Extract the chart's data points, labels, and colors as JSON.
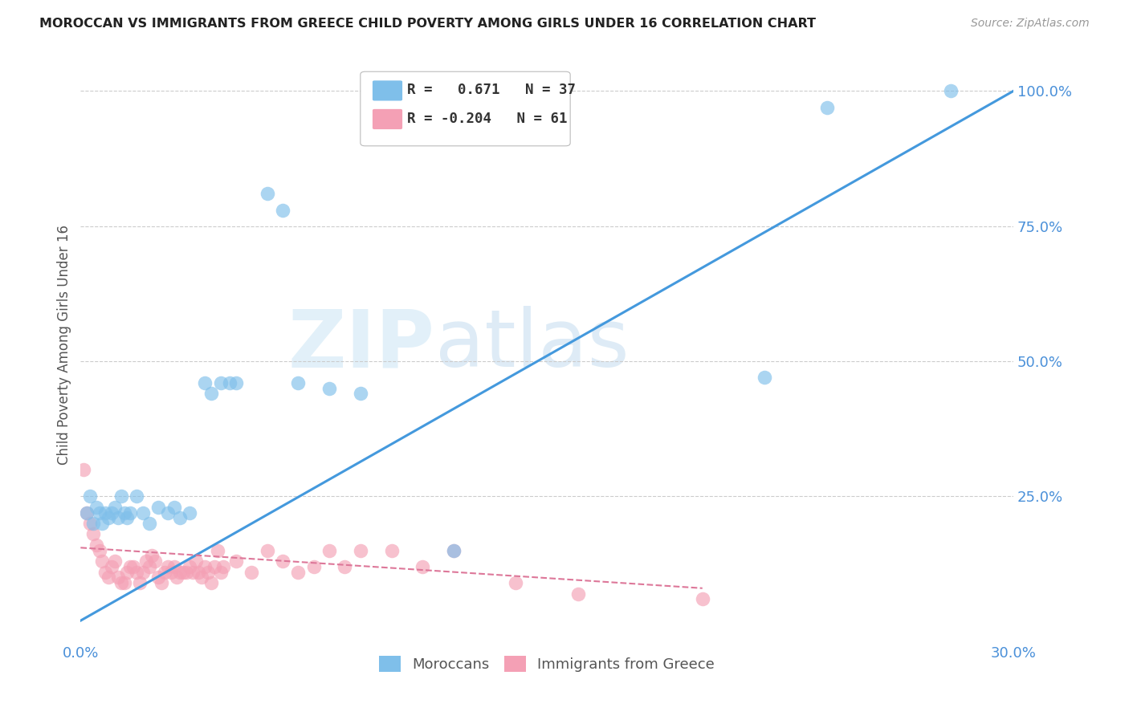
{
  "title": "MOROCCAN VS IMMIGRANTS FROM GREECE CHILD POVERTY AMONG GIRLS UNDER 16 CORRELATION CHART",
  "source": "Source: ZipAtlas.com",
  "ylabel": "Child Poverty Among Girls Under 16",
  "xlim": [
    0.0,
    0.3
  ],
  "ylim": [
    -0.02,
    1.08
  ],
  "yticks_right": [
    0.25,
    0.5,
    0.75,
    1.0
  ],
  "ytick_right_labels": [
    "25.0%",
    "50.0%",
    "75.0%",
    "100.0%"
  ],
  "blue_color": "#7fbfea",
  "pink_color": "#f4a0b5",
  "trend_blue": "#4499dd",
  "trend_pink": "#dd7799",
  "watermark_zip": "ZIP",
  "watermark_atlas": "atlas",
  "legend_blue_r": " 0.671",
  "legend_blue_n": "37",
  "legend_pink_r": "-0.204",
  "legend_pink_n": "61",
  "moroccans_x": [
    0.002,
    0.003,
    0.004,
    0.005,
    0.006,
    0.007,
    0.008,
    0.009,
    0.01,
    0.011,
    0.012,
    0.013,
    0.014,
    0.015,
    0.016,
    0.018,
    0.02,
    0.022,
    0.025,
    0.028,
    0.03,
    0.032,
    0.035,
    0.04,
    0.042,
    0.045,
    0.048,
    0.05,
    0.06,
    0.065,
    0.07,
    0.08,
    0.09,
    0.12,
    0.22,
    0.24,
    0.28
  ],
  "moroccans_y": [
    0.22,
    0.25,
    0.2,
    0.23,
    0.22,
    0.2,
    0.22,
    0.21,
    0.22,
    0.23,
    0.21,
    0.25,
    0.22,
    0.21,
    0.22,
    0.25,
    0.22,
    0.2,
    0.23,
    0.22,
    0.23,
    0.21,
    0.22,
    0.46,
    0.44,
    0.46,
    0.46,
    0.46,
    0.81,
    0.78,
    0.46,
    0.45,
    0.44,
    0.15,
    0.47,
    0.97,
    1.0
  ],
  "greece_x": [
    0.001,
    0.002,
    0.003,
    0.004,
    0.005,
    0.006,
    0.007,
    0.008,
    0.009,
    0.01,
    0.011,
    0.012,
    0.013,
    0.014,
    0.015,
    0.016,
    0.017,
    0.018,
    0.019,
    0.02,
    0.021,
    0.022,
    0.023,
    0.024,
    0.025,
    0.026,
    0.027,
    0.028,
    0.029,
    0.03,
    0.031,
    0.032,
    0.033,
    0.034,
    0.035,
    0.036,
    0.037,
    0.038,
    0.039,
    0.04,
    0.041,
    0.042,
    0.043,
    0.044,
    0.045,
    0.046,
    0.05,
    0.055,
    0.06,
    0.065,
    0.07,
    0.075,
    0.08,
    0.085,
    0.09,
    0.1,
    0.11,
    0.12,
    0.14,
    0.16,
    0.2
  ],
  "greece_y": [
    0.3,
    0.22,
    0.2,
    0.18,
    0.16,
    0.15,
    0.13,
    0.11,
    0.1,
    0.12,
    0.13,
    0.1,
    0.09,
    0.09,
    0.11,
    0.12,
    0.12,
    0.11,
    0.09,
    0.11,
    0.13,
    0.12,
    0.14,
    0.13,
    0.1,
    0.09,
    0.11,
    0.12,
    0.11,
    0.12,
    0.1,
    0.11,
    0.11,
    0.11,
    0.12,
    0.11,
    0.13,
    0.11,
    0.1,
    0.12,
    0.11,
    0.09,
    0.12,
    0.15,
    0.11,
    0.12,
    0.13,
    0.11,
    0.15,
    0.13,
    0.11,
    0.12,
    0.15,
    0.12,
    0.15,
    0.15,
    0.12,
    0.15,
    0.09,
    0.07,
    0.06
  ],
  "blue_trend_x": [
    0.0,
    0.3
  ],
  "blue_trend_y": [
    0.02,
    1.0
  ],
  "pink_trend_x": [
    0.0,
    0.2
  ],
  "pink_trend_y": [
    0.155,
    0.08
  ]
}
